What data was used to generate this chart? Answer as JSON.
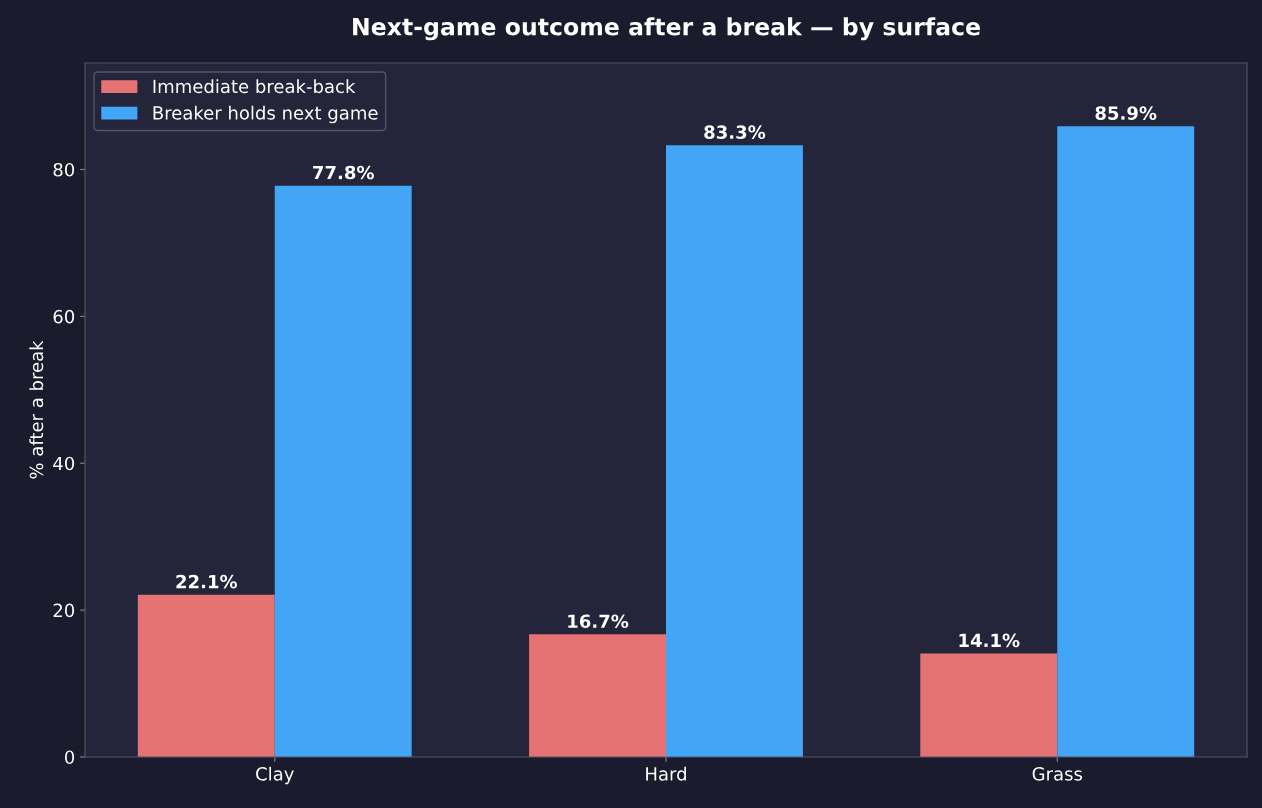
{
  "chart_data": {
    "type": "bar",
    "title": "Next-game outcome after a break — by surface",
    "ylabel": "% after a break",
    "categories": [
      "Clay",
      "Hard",
      "Grass"
    ],
    "series": [
      {
        "name": "Immediate break-back",
        "color": "#e57373",
        "values": [
          22.1,
          16.7,
          14.1
        ],
        "value_labels": [
          "22.1%",
          "16.7%",
          "14.1%"
        ]
      },
      {
        "name": "Breaker holds next game",
        "color": "#42a5f5",
        "values": [
          77.8,
          83.3,
          85.9
        ],
        "value_labels": [
          "77.8%",
          "83.3%",
          "85.9%"
        ]
      }
    ],
    "ylim": [
      0,
      94.5
    ],
    "yticks": [
      0,
      20,
      40,
      60,
      80
    ],
    "grid": false,
    "legend": "top left"
  }
}
